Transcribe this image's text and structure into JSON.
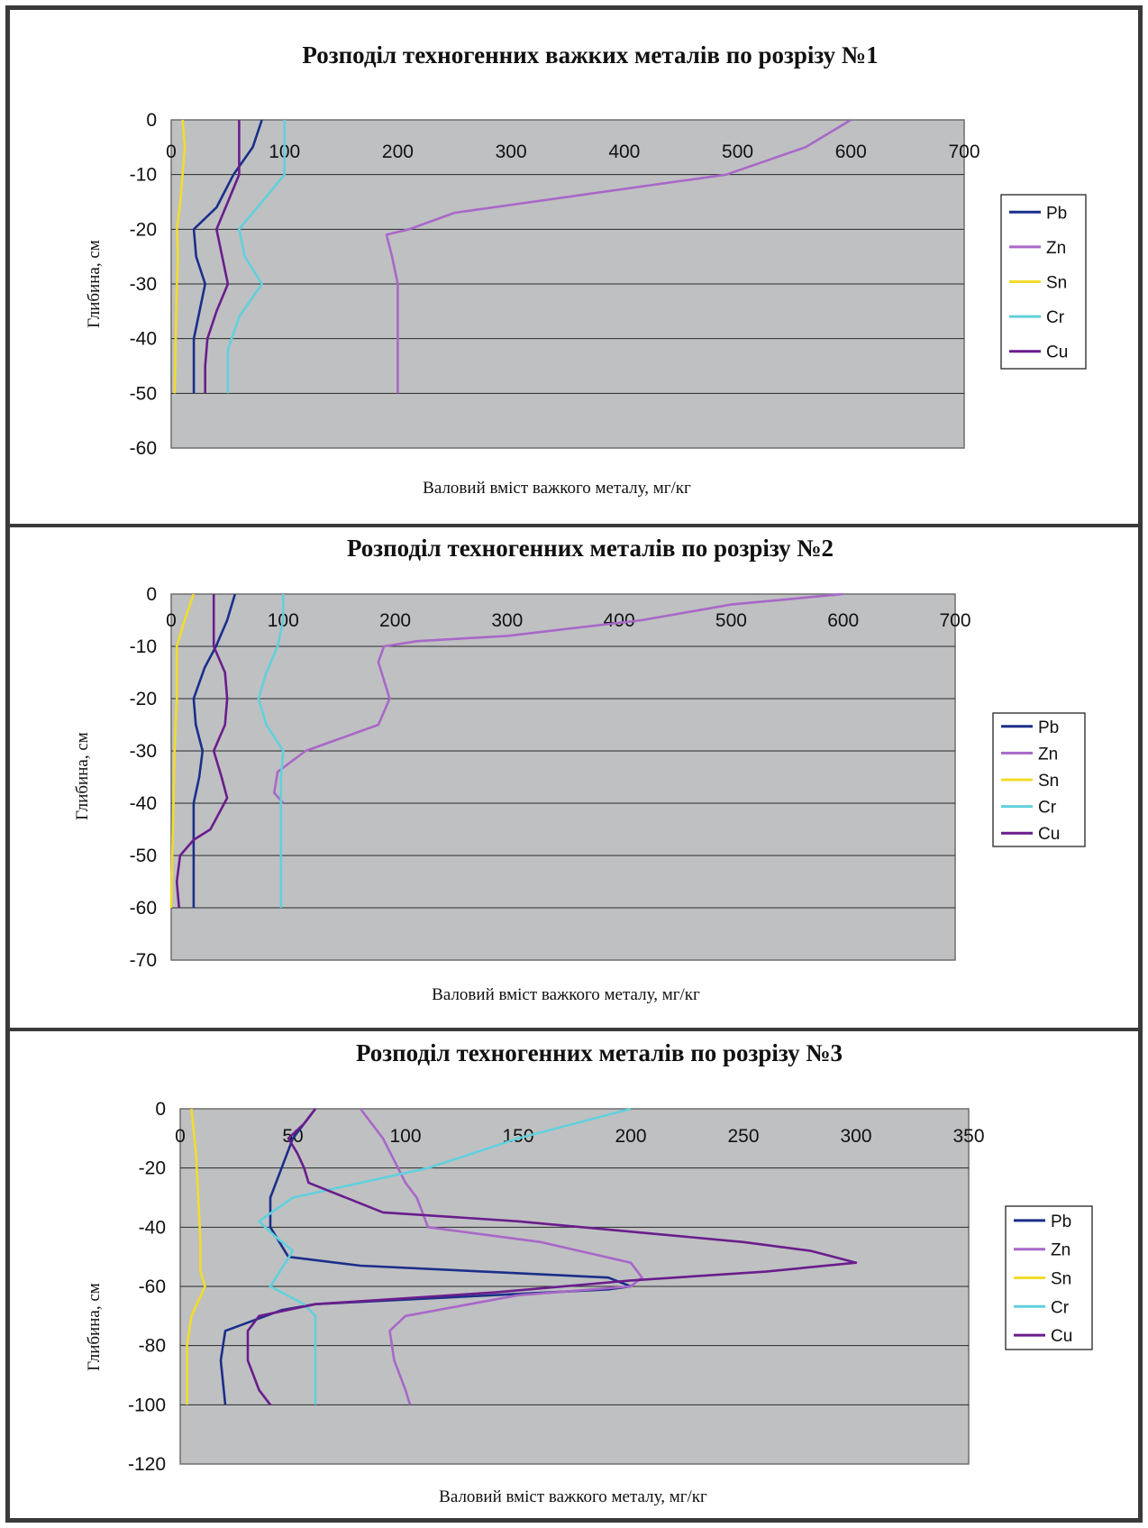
{
  "chart_data": [
    {
      "type": "line",
      "title": "Розподіл техногенних важких металів  по розрізу №1",
      "xlabel": "Валовий вміст важкого металу, мг/кг",
      "ylabel": "Глибина, см",
      "xlim": [
        0,
        700
      ],
      "ylim": [
        -60,
        0
      ],
      "x_ticks": [
        "0",
        "100",
        "200",
        "300",
        "400",
        "500",
        "600",
        "700"
      ],
      "y_ticks": [
        "0",
        "-10",
        "-20",
        "-30",
        "-40",
        "-50",
        "-60"
      ],
      "grid": true,
      "legend": "right",
      "series": [
        {
          "name": "Pb",
          "color": "#1b2f8a",
          "points": [
            [
              80,
              0
            ],
            [
              72,
              -5
            ],
            [
              55,
              -10
            ],
            [
              40,
              -16
            ],
            [
              20,
              -20
            ],
            [
              22,
              -25
            ],
            [
              30,
              -30
            ],
            [
              25,
              -35
            ],
            [
              20,
              -40
            ],
            [
              20,
              -45
            ],
            [
              20,
              -50
            ]
          ]
        },
        {
          "name": "Zn",
          "color": "#a868c8",
          "points": [
            [
              600,
              0
            ],
            [
              560,
              -5
            ],
            [
              490,
              -10
            ],
            [
              250,
              -17
            ],
            [
              210,
              -20
            ],
            [
              190,
              -21
            ],
            [
              195,
              -25
            ],
            [
              200,
              -30
            ],
            [
              200,
              -40
            ],
            [
              200,
              -50
            ]
          ]
        },
        {
          "name": "Sn",
          "color": "#f2dc2a",
          "points": [
            [
              10,
              0
            ],
            [
              12,
              -5
            ],
            [
              10,
              -10
            ],
            [
              8,
              -15
            ],
            [
              5,
              -20
            ],
            [
              6,
              -25
            ],
            [
              5,
              -30
            ],
            [
              4,
              -40
            ],
            [
              3,
              -50
            ]
          ]
        },
        {
          "name": "Cr",
          "color": "#62d0dc",
          "points": [
            [
              100,
              0
            ],
            [
              100,
              -5
            ],
            [
              100,
              -10
            ],
            [
              80,
              -15
            ],
            [
              60,
              -20
            ],
            [
              65,
              -25
            ],
            [
              80,
              -30
            ],
            [
              60,
              -36
            ],
            [
              50,
              -42
            ],
            [
              50,
              -50
            ]
          ]
        },
        {
          "name": "Cu",
          "color": "#6a1d8c",
          "points": [
            [
              60,
              0
            ],
            [
              60,
              -5
            ],
            [
              60,
              -10
            ],
            [
              50,
              -15
            ],
            [
              40,
              -20
            ],
            [
              45,
              -25
            ],
            [
              50,
              -30
            ],
            [
              40,
              -35
            ],
            [
              32,
              -40
            ],
            [
              30,
              -45
            ],
            [
              30,
              -50
            ]
          ]
        }
      ]
    },
    {
      "type": "line",
      "title": "Розподіл техногенних металів  по розрізу №2",
      "xlabel": "Валовий вміст важкого металу, мг/кг",
      "ylabel": "Глибина, см",
      "xlim": [
        0,
        700
      ],
      "ylim": [
        -70,
        0
      ],
      "x_ticks": [
        "0",
        "100",
        "200",
        "300",
        "400",
        "500",
        "600",
        "700"
      ],
      "y_ticks": [
        "0",
        "-10",
        "-20",
        "-30",
        "-40",
        "-50",
        "-60",
        "-70"
      ],
      "grid": true,
      "legend": "right",
      "series": [
        {
          "name": "Pb",
          "color": "#1b2f8a",
          "points": [
            [
              57,
              0
            ],
            [
              50,
              -5
            ],
            [
              40,
              -10
            ],
            [
              30,
              -14
            ],
            [
              20,
              -20
            ],
            [
              22,
              -25
            ],
            [
              28,
              -30
            ],
            [
              25,
              -35
            ],
            [
              20,
              -40
            ],
            [
              20,
              -50
            ],
            [
              20,
              -60
            ]
          ]
        },
        {
          "name": "Zn",
          "color": "#a868c8",
          "points": [
            [
              600,
              0
            ],
            [
              500,
              -2
            ],
            [
              420,
              -5
            ],
            [
              300,
              -8
            ],
            [
              220,
              -9
            ],
            [
              190,
              -10
            ],
            [
              185,
              -13
            ],
            [
              195,
              -20
            ],
            [
              185,
              -25
            ],
            [
              120,
              -30
            ],
            [
              95,
              -34
            ],
            [
              92,
              -38
            ],
            [
              100,
              -40
            ]
          ]
        },
        {
          "name": "Sn",
          "color": "#f2dc2a",
          "points": [
            [
              20,
              0
            ],
            [
              12,
              -5
            ],
            [
              5,
              -10
            ],
            [
              5,
              -20
            ],
            [
              3,
              -30
            ],
            [
              2,
              -40
            ],
            [
              1,
              -50
            ],
            [
              0,
              -60
            ]
          ]
        },
        {
          "name": "Cr",
          "color": "#62d0dc",
          "points": [
            [
              100,
              0
            ],
            [
              100,
              -5
            ],
            [
              95,
              -10
            ],
            [
              85,
              -15
            ],
            [
              78,
              -20
            ],
            [
              85,
              -25
            ],
            [
              100,
              -30
            ],
            [
              98,
              -35
            ],
            [
              98,
              -40
            ],
            [
              98,
              -50
            ],
            [
              98,
              -60
            ]
          ]
        },
        {
          "name": "Cu",
          "color": "#6a1d8c",
          "points": [
            [
              38,
              0
            ],
            [
              38,
              -5
            ],
            [
              38,
              -10
            ],
            [
              48,
              -15
            ],
            [
              50,
              -20
            ],
            [
              48,
              -25
            ],
            [
              38,
              -30
            ],
            [
              45,
              -35
            ],
            [
              50,
              -39
            ],
            [
              35,
              -45
            ],
            [
              20,
              -47
            ],
            [
              8,
              -50
            ],
            [
              5,
              -55
            ],
            [
              7,
              -60
            ]
          ]
        }
      ]
    },
    {
      "type": "line",
      "title": "Розподіл техногенних металів  по розрізу №3",
      "xlabel": "Валовий вміст важкого металу, мг/кг",
      "ylabel": "Глибина, см",
      "xlim": [
        0,
        350
      ],
      "ylim": [
        -120,
        0
      ],
      "x_ticks": [
        "0",
        "50",
        "100",
        "150",
        "200",
        "250",
        "300",
        "350"
      ],
      "y_ticks": [
        "0",
        "-20",
        "-40",
        "-60",
        "-80",
        "-100",
        "-120"
      ],
      "grid": true,
      "legend": "right",
      "series": [
        {
          "name": "Pb",
          "color": "#1b2f8a",
          "points": [
            [
              60,
              0
            ],
            [
              50,
              -10
            ],
            [
              45,
              -20
            ],
            [
              40,
              -30
            ],
            [
              40,
              -40
            ],
            [
              48,
              -50
            ],
            [
              80,
              -53
            ],
            [
              190,
              -57
            ],
            [
              200,
              -60
            ],
            [
              190,
              -61
            ],
            [
              60,
              -66
            ],
            [
              45,
              -68
            ],
            [
              20,
              -75
            ],
            [
              18,
              -85
            ],
            [
              20,
              -100
            ]
          ]
        },
        {
          "name": "Zn",
          "color": "#a868c8",
          "points": [
            [
              80,
              0
            ],
            [
              90,
              -10
            ],
            [
              100,
              -25
            ],
            [
              105,
              -30
            ],
            [
              110,
              -40
            ],
            [
              160,
              -45
            ],
            [
              200,
              -52
            ],
            [
              205,
              -57
            ],
            [
              200,
              -60
            ],
            [
              150,
              -63
            ],
            [
              100,
              -70
            ],
            [
              93,
              -75
            ],
            [
              95,
              -85
            ],
            [
              100,
              -95
            ],
            [
              102,
              -100
            ]
          ]
        },
        {
          "name": "Sn",
          "color": "#f2dc2a",
          "points": [
            [
              5,
              0
            ],
            [
              7,
              -15
            ],
            [
              8,
              -30
            ],
            [
              9,
              -45
            ],
            [
              9,
              -55
            ],
            [
              11,
              -60
            ],
            [
              8,
              -65
            ],
            [
              5,
              -70
            ],
            [
              3,
              -80
            ],
            [
              3,
              -90
            ],
            [
              3,
              -100
            ]
          ]
        },
        {
          "name": "Cr",
          "color": "#62d0dc",
          "points": [
            [
              200,
              0
            ],
            [
              150,
              -10
            ],
            [
              110,
              -20
            ],
            [
              50,
              -30
            ],
            [
              35,
              -38
            ],
            [
              42,
              -43
            ],
            [
              50,
              -48
            ],
            [
              40,
              -60
            ],
            [
              55,
              -66
            ],
            [
              60,
              -70
            ],
            [
              60,
              -80
            ],
            [
              60,
              -90
            ],
            [
              60,
              -100
            ]
          ]
        },
        {
          "name": "Cu",
          "color": "#6a1d8c",
          "points": [
            [
              60,
              0
            ],
            [
              55,
              -5
            ],
            [
              48,
              -10
            ],
            [
              52,
              -15
            ],
            [
              55,
              -20
            ],
            [
              57,
              -25
            ],
            [
              90,
              -35
            ],
            [
              150,
              -38
            ],
            [
              250,
              -45
            ],
            [
              280,
              -48
            ],
            [
              300,
              -52
            ],
            [
              260,
              -55
            ],
            [
              200,
              -58
            ],
            [
              140,
              -62
            ],
            [
              60,
              -66
            ],
            [
              35,
              -70
            ],
            [
              30,
              -75
            ],
            [
              30,
              -85
            ],
            [
              35,
              -95
            ],
            [
              40,
              -100
            ]
          ]
        }
      ]
    }
  ]
}
